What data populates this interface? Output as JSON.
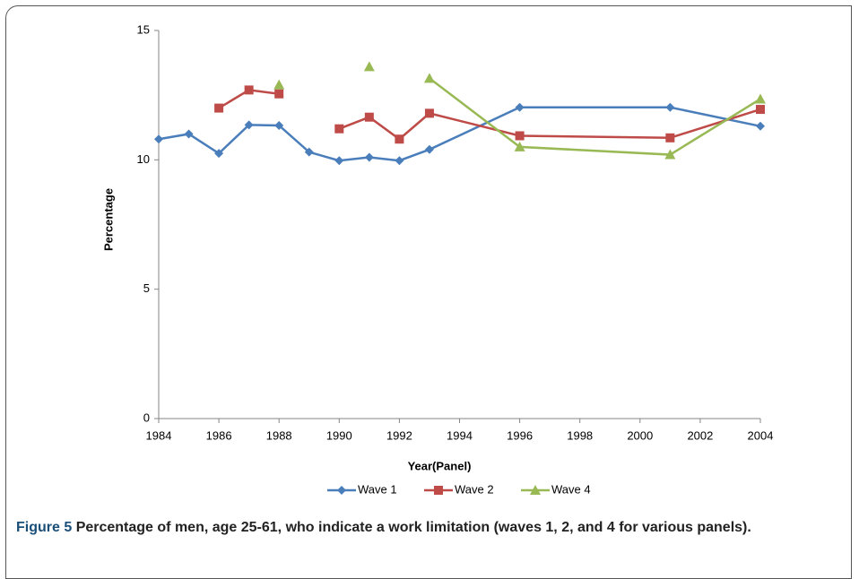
{
  "chart_data": {
    "type": "line",
    "x_label": "Year(Panel)",
    "y_label": "Percentage",
    "x": [
      1984,
      1985,
      1986,
      1987,
      1988,
      1989,
      1990,
      1991,
      1992,
      1993,
      1996,
      2001,
      2004
    ],
    "series": [
      {
        "name": "Wave 1",
        "color": "#4a7ebb",
        "marker": "diamond",
        "values": [
          10.8,
          11.0,
          10.25,
          11.35,
          11.33,
          10.3,
          9.97,
          10.1,
          9.97,
          10.4,
          12.03,
          12.03,
          11.3
        ]
      },
      {
        "name": "Wave 2",
        "color": "#be4b48",
        "marker": "square",
        "values": [
          null,
          null,
          12.0,
          12.7,
          12.55,
          null,
          11.2,
          11.65,
          10.8,
          11.8,
          10.93,
          10.85,
          11.95
        ]
      },
      {
        "name": "Wave 4",
        "color": "#98b954",
        "marker": "triangle",
        "values": [
          null,
          null,
          null,
          null,
          12.9,
          null,
          null,
          13.6,
          null,
          13.15,
          10.5,
          10.2,
          12.35
        ]
      }
    ],
    "xlim": [
      1984,
      2004
    ],
    "xticks": [
      1984,
      1986,
      1988,
      1990,
      1992,
      1994,
      1996,
      1998,
      2000,
      2002,
      2004
    ],
    "ylim": [
      0,
      15
    ],
    "yticks": [
      0,
      5,
      10,
      15
    ],
    "grid": false,
    "legend": "bottom"
  },
  "caption": {
    "label": "Figure 5",
    "text": "Percentage of men, age 25-61, who indicate a work limitation (waves 1, 2, and 4 for various panels)."
  }
}
